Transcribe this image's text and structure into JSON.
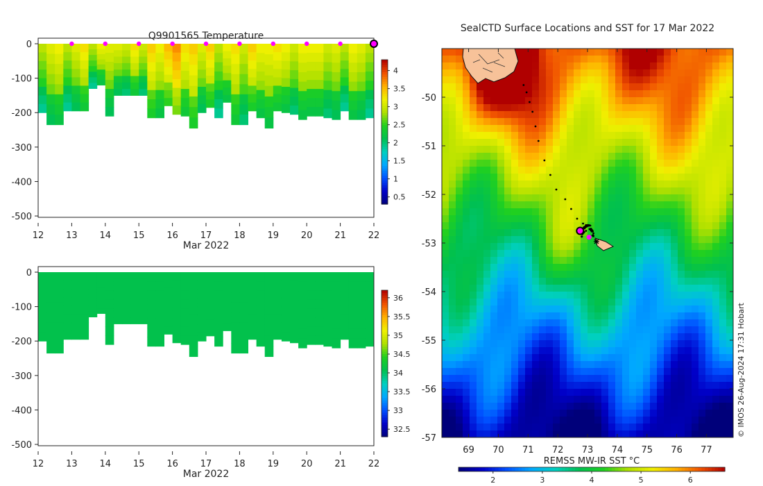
{
  "colors": {
    "sst_scale": [
      "#00007a",
      "#0000c8",
      "#0050ff",
      "#00a8ff",
      "#00d0c0",
      "#00c050",
      "#20d020",
      "#b0e000",
      "#f0f000",
      "#ffb000",
      "#f05000",
      "#b00000"
    ],
    "salinity_fill": "#00c030",
    "marker": "#ff00ff",
    "land": "#f7c299"
  },
  "chart_data": [
    {
      "type": "heatmap",
      "name": "temperature_section",
      "title": "Q9901565  Temperature",
      "xlabel": "Mar 2022",
      "x_ticks": [
        "12",
        "13",
        "14",
        "15",
        "16",
        "17",
        "18",
        "19",
        "20",
        "21",
        "22"
      ],
      "xlim": [
        12,
        22
      ],
      "y_ticks": [
        "0",
        "-100",
        "-200",
        "-300",
        "-400",
        "-500"
      ],
      "ylim": [
        -520,
        0
      ],
      "colorbar": {
        "range": [
          0.3,
          4.3
        ],
        "ticks": [
          "0.5",
          "1",
          "1.5",
          "2",
          "2.5",
          "3",
          "3.5",
          "4"
        ]
      },
      "profile_times": [
        12.0,
        12.25,
        12.5,
        12.75,
        13.0,
        13.25,
        13.5,
        13.75,
        14.0,
        14.25,
        14.5,
        14.75,
        15.0,
        15.25,
        15.5,
        15.75,
        16.0,
        16.25,
        16.5,
        16.75,
        17.0,
        17.25,
        17.5,
        17.75,
        18.0,
        18.25,
        18.5,
        18.75,
        19.0,
        19.25,
        19.5,
        19.75,
        20.0,
        20.25,
        20.5,
        20.75,
        21.0,
        21.25,
        21.5,
        21.75,
        22.0
      ],
      "profile_depths": [
        200,
        235,
        235,
        195,
        195,
        195,
        130,
        120,
        210,
        150,
        150,
        150,
        150,
        215,
        215,
        180,
        205,
        210,
        245,
        200,
        185,
        215,
        170,
        235,
        235,
        195,
        215,
        245,
        195,
        200,
        205,
        220,
        210,
        210,
        215,
        220,
        195,
        220,
        220,
        215,
        200
      ],
      "surface_temps": [
        3.0,
        3.1,
        3.2,
        3.0,
        3.1,
        3.3,
        3.0,
        3.2,
        3.1,
        3.2,
        3.0,
        3.3,
        3.1,
        3.4,
        3.2,
        3.6,
        3.7,
        3.3,
        3.5,
        3.1,
        3.4,
        3.0,
        3.2,
        3.3,
        3.1,
        3.4,
        3.2,
        3.3,
        3.3,
        3.2,
        3.1,
        3.2,
        3.2,
        3.3,
        3.0,
        3.1,
        3.0,
        3.2,
        3.1,
        3.0,
        3.0
      ],
      "markers_x": [
        13,
        14,
        15,
        16,
        17,
        18,
        19,
        20,
        21,
        22
      ]
    },
    {
      "type": "heatmap",
      "name": "salinity_section",
      "title": "",
      "xlabel": "Mar 2022",
      "x_ticks": [
        "12",
        "13",
        "14",
        "15",
        "16",
        "17",
        "18",
        "19",
        "20",
        "21",
        "22"
      ],
      "xlim": [
        12,
        22
      ],
      "y_ticks": [
        "0",
        "-100",
        "-200",
        "-300",
        "-400",
        "-500"
      ],
      "ylim": [
        -520,
        0
      ],
      "colorbar": {
        "range": [
          32.3,
          36.2
        ],
        "ticks": [
          "32.5",
          "33",
          "33.5",
          "34",
          "34.5",
          "35",
          "35.5",
          "36"
        ]
      },
      "value": 34.1
    },
    {
      "type": "heatmap",
      "name": "sst_map",
      "title": "SealCTD Surface Locations and SST for 17 Mar 2022",
      "xlabel": "REMSS MW-IR SST °C",
      "xlim": [
        68.1,
        77.9
      ],
      "ylim": [
        -57.0,
        -49.0
      ],
      "x_ticks": [
        "69",
        "70",
        "71",
        "72",
        "73",
        "74",
        "75",
        "76",
        "77"
      ],
      "y_ticks": [
        "-50",
        "-51",
        "-52",
        "-53",
        "-54",
        "-55",
        "-56",
        "-57"
      ],
      "colorbar": {
        "range": [
          1.3,
          6.7
        ],
        "ticks": [
          "2",
          "3",
          "4",
          "5",
          "6"
        ]
      },
      "track_lon": [
        70.85,
        70.95,
        71.05,
        71.15,
        71.25,
        71.35,
        71.55,
        71.75,
        71.95,
        72.25,
        72.45,
        72.65,
        72.85,
        73.0,
        72.9,
        73.1,
        72.95,
        73.2
      ],
      "track_lat": [
        -49.75,
        -49.9,
        -50.1,
        -50.3,
        -50.6,
        -50.9,
        -51.3,
        -51.6,
        -51.9,
        -52.1,
        -52.3,
        -52.5,
        -52.6,
        -52.65,
        -52.7,
        -52.72,
        -52.75,
        -52.8
      ],
      "current_position": {
        "lon": 72.75,
        "lat": -52.75
      },
      "deployment_position": {
        "lon": 73.3,
        "lat": -52.97
      }
    }
  ],
  "credit": "© IMOS 26-Aug-2024 17:31 Hobart"
}
